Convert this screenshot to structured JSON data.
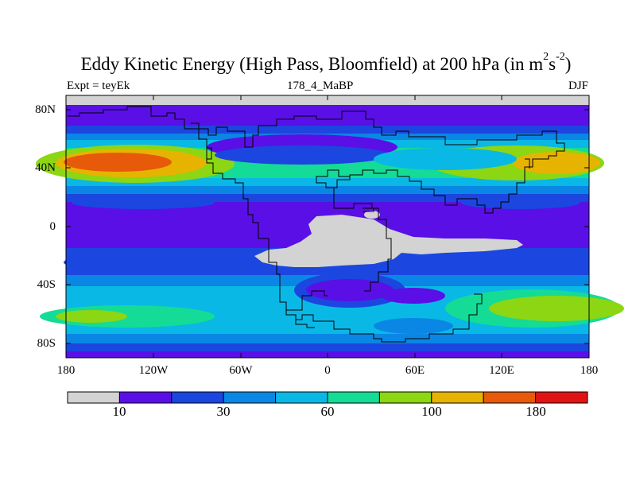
{
  "title_text": "Eddy Kinetic Energy (High Pass, Bloomfield) at 200 hPa (in m",
  "title_sup1": "2",
  "title_mid": "s",
  "title_sup2": "-2",
  "title_close": ")",
  "subtitle_left": "Expt = teyEk",
  "subtitle_center": "178_4_MaBP",
  "subtitle_right": "DJF",
  "lat_ticks": [
    "80N",
    "40N",
    "0",
    "40S",
    "80S"
  ],
  "lon_ticks": [
    "180",
    "120W",
    "60W",
    "0",
    "60E",
    "120E",
    "180"
  ],
  "colorbar": {
    "colors": [
      "#d3d3d3",
      "#5a0fe6",
      "#1c46e0",
      "#0a87e4",
      "#0ab8e6",
      "#14db96",
      "#8cd614",
      "#e6b400",
      "#e65a0a",
      "#e01414"
    ],
    "labels": [
      "10",
      "30",
      "60",
      "100",
      "180"
    ]
  }
}
